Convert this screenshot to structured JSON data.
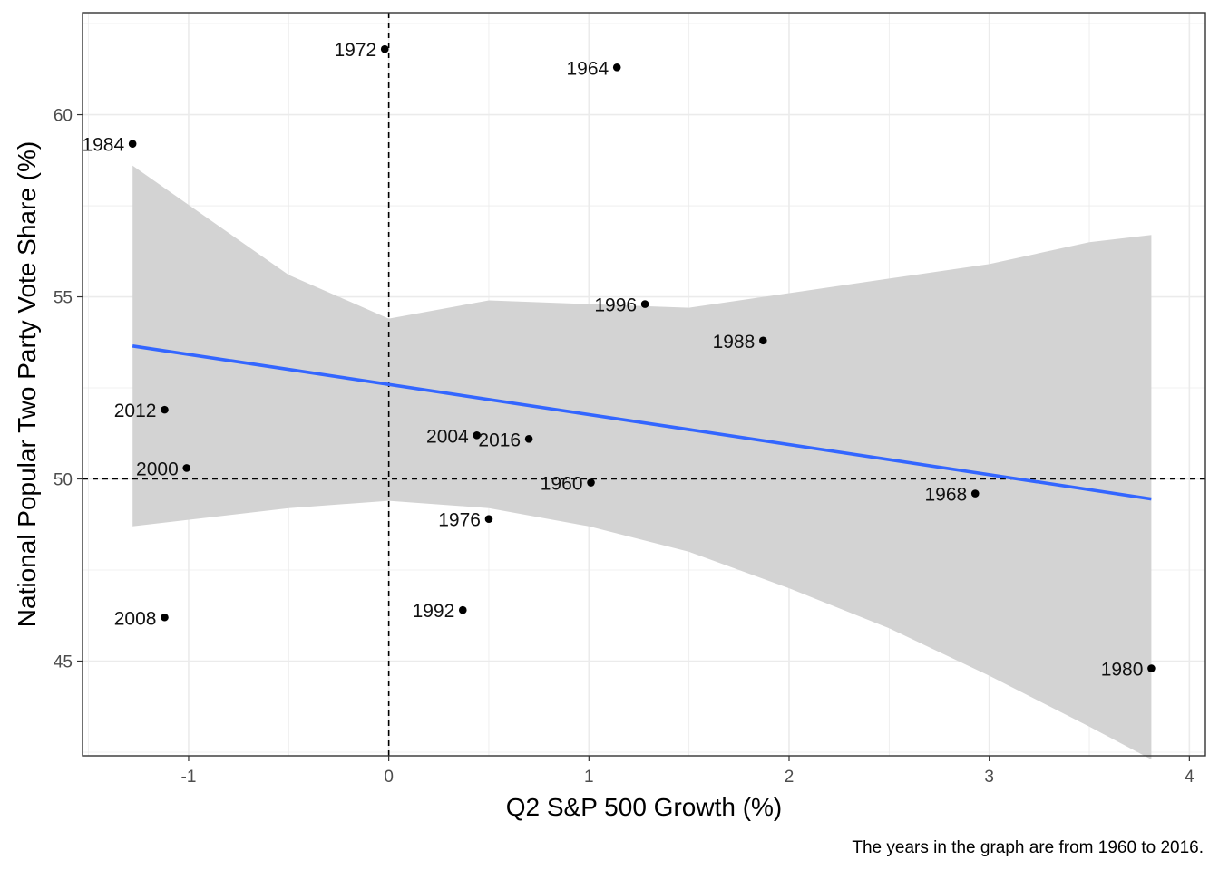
{
  "chart_data": {
    "type": "scatter",
    "xlabel": "Q2 S&P 500 Growth (%)",
    "ylabel": "National Popular Two Party Vote Share (%)",
    "caption": "The years in the graph are from 1960 to 2016.",
    "xlim": [
      -1.53,
      4.08
    ],
    "ylim": [
      42.4,
      62.8
    ],
    "x_ticks": [
      -1,
      0,
      1,
      2,
      3,
      4
    ],
    "y_ticks": [
      45,
      50,
      55,
      60
    ],
    "grid": true,
    "reference_lines": {
      "x": 0,
      "y": 50
    },
    "points": [
      {
        "label": "1960",
        "x": 1.01,
        "y": 49.9
      },
      {
        "label": "1964",
        "x": 1.14,
        "y": 61.3
      },
      {
        "label": "1968",
        "x": 2.93,
        "y": 49.6
      },
      {
        "label": "1972",
        "x": -0.02,
        "y": 61.8
      },
      {
        "label": "1976",
        "x": 0.5,
        "y": 48.9
      },
      {
        "label": "1980",
        "x": 3.81,
        "y": 44.8
      },
      {
        "label": "1984",
        "x": -1.28,
        "y": 59.2
      },
      {
        "label": "1988",
        "x": 1.87,
        "y": 53.8
      },
      {
        "label": "1992",
        "x": 0.37,
        "y": 46.4
      },
      {
        "label": "1996",
        "x": 1.28,
        "y": 54.8
      },
      {
        "label": "2000",
        "x": -1.01,
        "y": 50.3
      },
      {
        "label": "2004",
        "x": 0.44,
        "y": 51.2
      },
      {
        "label": "2008",
        "x": -1.12,
        "y": 46.2
      },
      {
        "label": "2012",
        "x": -1.12,
        "y": 51.9
      },
      {
        "label": "2016",
        "x": 0.7,
        "y": 51.1
      }
    ],
    "fit_line": {
      "x": [
        -1.28,
        3.81
      ],
      "y": [
        53.65,
        49.45
      ]
    },
    "confidence_band": {
      "x": [
        -1.28,
        -0.5,
        0,
        0.5,
        1,
        1.5,
        2,
        2.5,
        3,
        3.5,
        3.81
      ],
      "upper": [
        58.6,
        55.6,
        54.4,
        54.9,
        54.8,
        54.7,
        55.1,
        55.5,
        55.9,
        56.5,
        56.7
      ],
      "lower": [
        48.7,
        49.2,
        49.4,
        49.2,
        48.7,
        48.0,
        47.0,
        45.9,
        44.6,
        43.2,
        42.3
      ]
    },
    "colors": {
      "fit": "#3366ff",
      "band": "#d3d3d3",
      "points": "#000000",
      "grid": "#ebebeb"
    }
  }
}
